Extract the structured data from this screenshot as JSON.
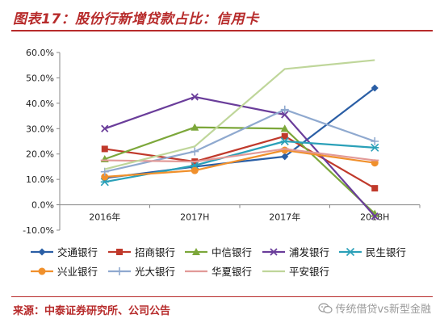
{
  "title": "图表17：股份行新增贷款占比：信用卡",
  "source": "来源：中泰证券研究所、公司公告",
  "watermark": "传统借贷vs新型金融",
  "chart_data": {
    "type": "line",
    "title": "图表17：股份行新增贷款占比：信用卡",
    "categories": [
      "2016年",
      "2017H",
      "2017年",
      "2018H"
    ],
    "ylim": [
      -10,
      60
    ],
    "yticks": [
      -10,
      0,
      10,
      20,
      30,
      40,
      50,
      60
    ],
    "ytick_labels": [
      "-10.0%",
      "0.0%",
      "10.0%",
      "20.0%",
      "30.0%",
      "40.0%",
      "50.0%",
      "60.0%"
    ],
    "grid": false,
    "legend": "bottom",
    "series": [
      {
        "name": "交通银行",
        "values": [
          10.5,
          15,
          19,
          46
        ],
        "color": "#2a5ea5",
        "marker": "diamond"
      },
      {
        "name": "招商银行",
        "values": [
          22,
          17,
          27,
          6.5
        ],
        "color": "#c0392b",
        "marker": "square"
      },
      {
        "name": "中信银行",
        "values": [
          18,
          30.5,
          30,
          -3.5
        ],
        "color": "#7ca73a",
        "marker": "triangle"
      },
      {
        "name": "浦发银行",
        "values": [
          30,
          42.5,
          35.5,
          -4.5
        ],
        "color": "#6a3d9a",
        "marker": "x"
      },
      {
        "name": "民生银行",
        "values": [
          9,
          15.5,
          25,
          22.5
        ],
        "color": "#2aa0b8",
        "marker": "star"
      },
      {
        "name": "兴业银行",
        "values": [
          11,
          13.5,
          21.5,
          16.5
        ],
        "color": "#f0902c",
        "marker": "circle"
      },
      {
        "name": "光大银行",
        "values": [
          13,
          21,
          37.5,
          25
        ],
        "color": "#8fa9cf",
        "marker": "plus"
      },
      {
        "name": "华夏银行",
        "values": [
          17.5,
          17,
          22,
          17.5
        ],
        "color": "#e29a98",
        "marker": "dash"
      },
      {
        "name": "平安银行",
        "values": [
          14,
          23,
          53.5,
          57
        ],
        "color": "#bfd69a",
        "marker": "none"
      }
    ]
  }
}
